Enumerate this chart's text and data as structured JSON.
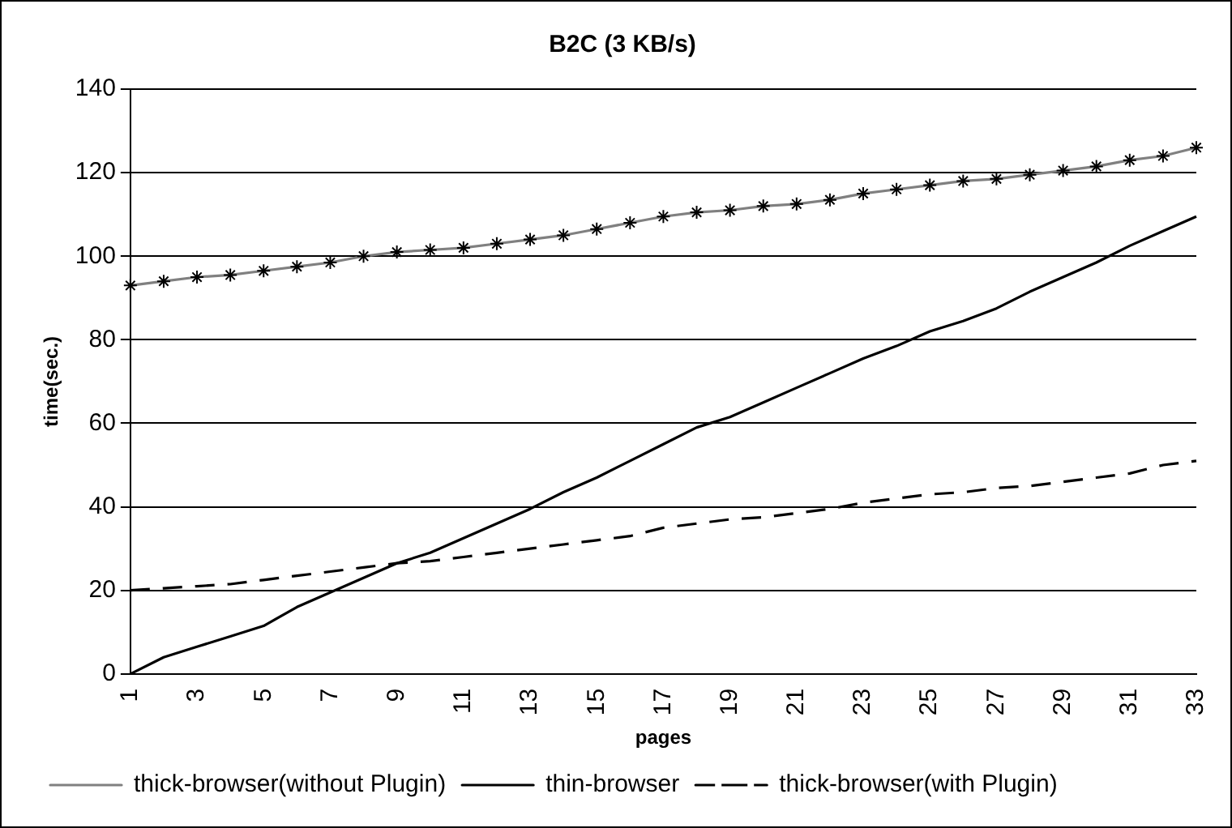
{
  "chart_data": {
    "type": "line",
    "title": "B2C (3 KB/s)",
    "xlabel": "pages",
    "ylabel": "time(sec.)",
    "categories": [
      "1",
      null,
      "3",
      null,
      "5",
      null,
      "7",
      null,
      "9",
      null,
      "11",
      null,
      "13",
      null,
      "15",
      null,
      "17",
      null,
      "19",
      null,
      "21",
      null,
      "23",
      null,
      "25",
      null,
      "27",
      null,
      "29",
      null,
      "31",
      null,
      "33"
    ],
    "ylim": [
      0,
      140
    ],
    "yticks": [
      0,
      20,
      40,
      60,
      80,
      100,
      120,
      140
    ],
    "grid": "y",
    "legend": "bottom",
    "series": [
      {
        "name": "thick-browser(without Plugin)",
        "color": "#808080",
        "marker": "cross",
        "line_style": "solid",
        "values": [
          93,
          94,
          95,
          95.5,
          96.5,
          97.5,
          98.5,
          100,
          101,
          101.5,
          102,
          103,
          104,
          105,
          106.5,
          108,
          109.5,
          110.5,
          111,
          112,
          112.5,
          113.5,
          115,
          116,
          117,
          118,
          118.5,
          119.5,
          120.5,
          121.5,
          123,
          124,
          126
        ]
      },
      {
        "name": "thin-browser",
        "color": "#000000",
        "marker": "none",
        "line_style": "solid",
        "values": [
          0,
          4,
          6.5,
          9,
          11.5,
          16,
          19.5,
          23,
          26.5,
          29,
          32.5,
          36,
          39.5,
          43.5,
          47,
          51,
          55,
          59,
          61.5,
          65,
          68.5,
          72,
          75.5,
          78.5,
          82,
          84.5,
          87.5,
          91.5,
          95,
          98.5,
          102.5,
          106,
          109.5
        ]
      },
      {
        "name": "thick-browser(with Plugin)",
        "color": "#000000",
        "marker": "none",
        "line_style": "dashed",
        "values": [
          20,
          20.5,
          21,
          21.5,
          22.5,
          23.5,
          24.5,
          25.5,
          26.5,
          27,
          28,
          29,
          30,
          31,
          32,
          33,
          35,
          36,
          37,
          37.5,
          38.5,
          39.5,
          41,
          42,
          43,
          43.5,
          44.5,
          45,
          46,
          47,
          48,
          50,
          51
        ]
      }
    ]
  }
}
